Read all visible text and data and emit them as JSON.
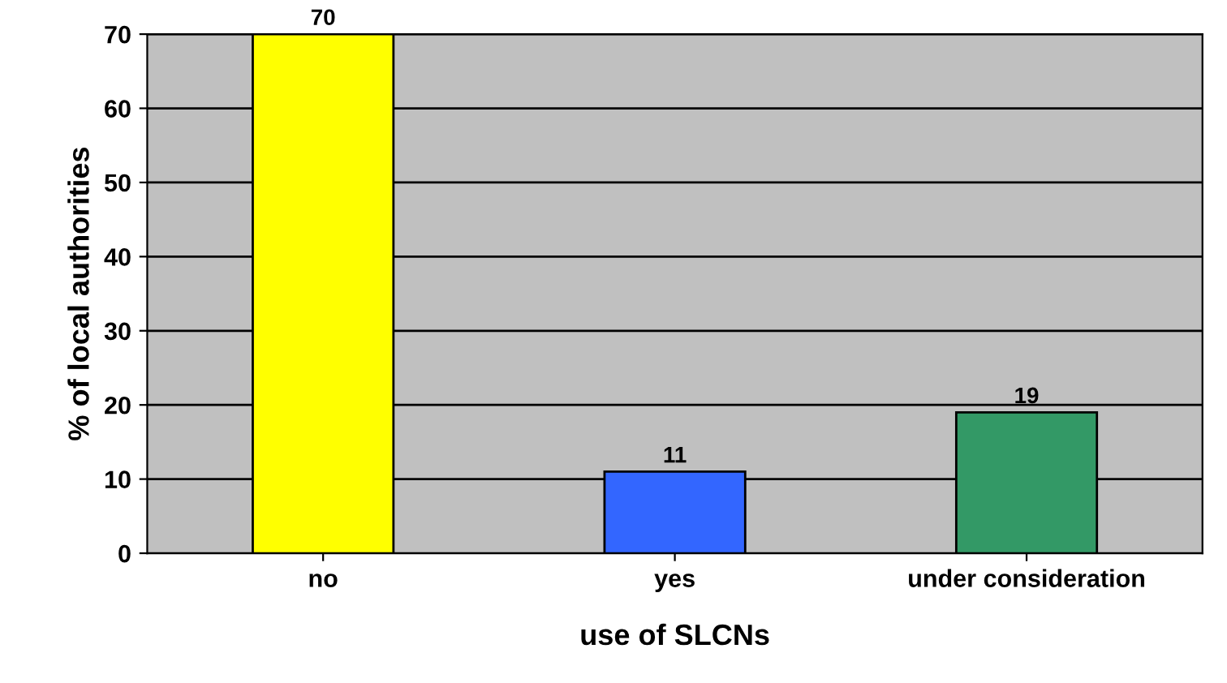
{
  "chart_data": {
    "type": "bar",
    "categories": [
      "no",
      "yes",
      "under consideration"
    ],
    "values": [
      70,
      11,
      19
    ],
    "colors": [
      "#ffff00",
      "#3366ff",
      "#339966"
    ],
    "xlabel": "use of SLCNs",
    "ylabel": "% of local authorities",
    "ylim": [
      0,
      70
    ],
    "yticks": [
      0,
      10,
      20,
      30,
      40,
      50,
      60,
      70
    ],
    "grid": "y",
    "data_labels": true,
    "legend": false
  }
}
